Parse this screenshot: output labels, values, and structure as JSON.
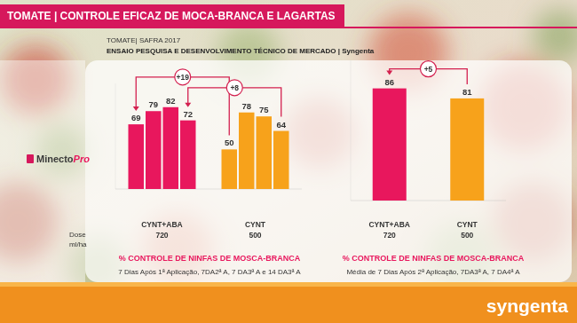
{
  "header": {
    "title": "TOMATE | CONTROLE EFICAZ DE MOCA-BRANCA E LAGARTAS",
    "subtitle": "TOMATE| SAFRA 2017",
    "source": "ENSAIO PESQUISA E DESENVOLVIMENTO TÉCNICO DE MERCADO | Syngenta"
  },
  "product": {
    "name": "Minecto",
    "suffix": "Pro"
  },
  "dose_label": [
    "Dose",
    "ml/ha"
  ],
  "footer": {
    "brand": "syngenta"
  },
  "chart_data": [
    {
      "type": "bar",
      "title": "% CONTROLE DE NINFAS DE MOSCA-BRANCA",
      "subtitle": "7 Dias Após 1ª Aplicação, 7DA2ª A, 7 DA3ª A e 14 DA3ª A",
      "categories": [
        null,
        null,
        null,
        null
      ],
      "series": [
        {
          "name": "CYNT+ABA",
          "dose": 720,
          "color": "#e8175d",
          "values": [
            69,
            79,
            82,
            72
          ]
        },
        {
          "name": "CYNT",
          "dose": 500,
          "color": "#f7a21b",
          "values": [
            50,
            78,
            75,
            64
          ]
        }
      ],
      "ylim": [
        20,
        100
      ],
      "tick_labels": false,
      "data_labels": true,
      "grid": false,
      "annotations": [
        {
          "text": "+19",
          "index": 0
        },
        {
          "text": "+8",
          "index": 3
        }
      ]
    },
    {
      "type": "bar",
      "title": "% CONTROLE DE NINFAS DE MOSCA-BRANCA",
      "subtitle": "Média de 7 Dias Após 2ª Aplicação, 7DA3ª A, 7 DA4ª A",
      "categories": [
        "CYNT+ABA",
        "CYNT"
      ],
      "doses": [
        720,
        500
      ],
      "values": [
        86,
        81
      ],
      "colors": [
        "#e8175d",
        "#f7a21b"
      ],
      "ylim": [
        30,
        100
      ],
      "tick_labels": false,
      "data_labels": true,
      "grid": false,
      "annotations": [
        {
          "text": "+5",
          "from": 0,
          "to": 1
        }
      ]
    }
  ]
}
